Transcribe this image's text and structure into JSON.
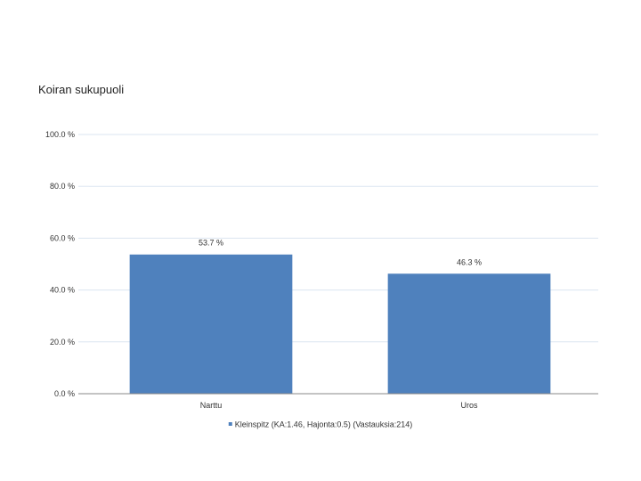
{
  "chart_data": {
    "type": "bar",
    "title": "Koiran sukupuoli",
    "categories": [
      "Narttu",
      "Uros"
    ],
    "series": [
      {
        "name": "Kleinspitz (KA:1.46, Hajonta:0.5) (Vastauksia:214)",
        "values": [
          53.7,
          46.3
        ],
        "labels": [
          "53.7 %",
          "46.3 %"
        ],
        "color": "#4f81bd"
      }
    ],
    "yticks": [
      0,
      20,
      40,
      60,
      80,
      100
    ],
    "ytick_labels": [
      "0.0 %",
      "20.0 %",
      "40.0 %",
      "60.0 %",
      "80.0 %",
      "100.0 %"
    ],
    "ylim": [
      0,
      100
    ],
    "grid": true,
    "legend_position": "bottom",
    "colors": {
      "bar": "#4f81bd",
      "grid": "#dbe5f1",
      "axis": "#888888"
    }
  }
}
